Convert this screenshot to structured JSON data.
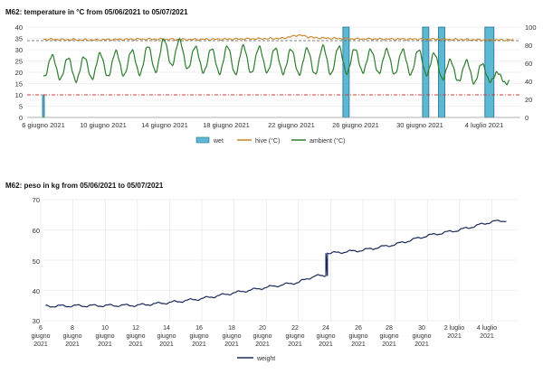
{
  "charts": [
    {
      "title": "M62: temperature in °C from 05/06/2021 to 05/07/2021",
      "y_ticks_left": [
        "0",
        "5",
        "10",
        "15",
        "20",
        "25",
        "30",
        "35",
        "40"
      ],
      "y_ticks_right": [
        "0",
        "20",
        "40",
        "60",
        "80",
        "100"
      ],
      "x_ticks": [
        "6 giugno 2021",
        "10 giugno 2021",
        "14 giugno 2021",
        "18 giugno 2021",
        "22 giugno 2021",
        "26 giugno 2021",
        "30 giugno 2021",
        "4 luglio 2021"
      ],
      "legend": [
        "wet",
        "hive (°C)",
        "ambient (°C)"
      ]
    },
    {
      "title": "M62: peso in kg from 05/06/2021 to 05/07/2021",
      "y_ticks": [
        "30",
        "40",
        "50",
        "60",
        "70"
      ],
      "x_ticks": [
        [
          "6",
          "giugno",
          "2021"
        ],
        [
          "8",
          "giugno",
          "2021"
        ],
        [
          "10",
          "giugno",
          "2021"
        ],
        [
          "12",
          "giugno",
          "2021"
        ],
        [
          "14",
          "giugno",
          "2021"
        ],
        [
          "16",
          "giugno",
          "2021"
        ],
        [
          "18",
          "giugno",
          "2021"
        ],
        [
          "20",
          "giugno",
          "2021"
        ],
        [
          "22",
          "giugno",
          "2021"
        ],
        [
          "24",
          "giugno",
          "2021"
        ],
        [
          "26",
          "giugno",
          "2021"
        ],
        [
          "28",
          "giugno",
          "2021"
        ],
        [
          "30",
          "giugno",
          "2021"
        ],
        [
          "2 luglio",
          "2021",
          ""
        ],
        [
          "4 luglio",
          "2021",
          ""
        ]
      ],
      "legend": [
        "weight"
      ]
    }
  ],
  "colors": {
    "wet": "#5db8d3",
    "hive": "#c8862a",
    "ambient": "#2f7d2f",
    "weight": "#1a2a5a",
    "threshold": "#d33b3b"
  },
  "chart_data": [
    {
      "type": "line",
      "title": "M62: temperature in °C from 05/06/2021 to 05/07/2021",
      "x_range": [
        "2021-06-05",
        "2021-07-05"
      ],
      "ylim": [
        0,
        40
      ],
      "ylim_right": [
        0,
        100
      ],
      "thresholds": {
        "upper": 34,
        "lower": 10
      },
      "grid": true,
      "legend_position": "bottom",
      "series": [
        {
          "name": "hive (°C)",
          "axis": "left",
          "color": "#c8862a",
          "x": [
            "2021-06-06",
            "2021-06-09",
            "2021-06-12",
            "2021-06-15",
            "2021-06-18",
            "2021-06-21",
            "2021-06-22",
            "2021-06-23",
            "2021-06-25",
            "2021-06-28",
            "2021-07-01",
            "2021-07-04"
          ],
          "y": [
            34.6,
            34.3,
            34.7,
            34.5,
            34.7,
            35.0,
            36.5,
            35.3,
            34.8,
            34.7,
            34.6,
            34.3
          ]
        },
        {
          "name": "ambient (°C)",
          "axis": "left",
          "color": "#2f7d2f",
          "x": [
            "2021-06-06",
            "2021-06-08",
            "2021-06-10",
            "2021-06-12",
            "2021-06-13",
            "2021-06-14",
            "2021-06-16",
            "2021-06-18",
            "2021-06-20",
            "2021-06-22",
            "2021-06-24",
            "2021-06-26",
            "2021-06-28",
            "2021-06-30",
            "2021-07-01",
            "2021-07-02",
            "2021-07-03",
            "2021-07-04",
            "2021-07-05"
          ],
          "y_max": [
            28,
            26,
            29,
            30,
            33,
            36,
            30,
            32,
            31,
            30,
            32,
            30,
            30,
            30,
            27,
            24,
            26,
            22,
            18
          ],
          "y_min": [
            18,
            16,
            18,
            19,
            20,
            23,
            20,
            19,
            20,
            19,
            19,
            20,
            19,
            19,
            17,
            16,
            15,
            16,
            15
          ]
        },
        {
          "name": "wet",
          "axis": "right",
          "type": "bar",
          "color": "#5db8d3",
          "x": [
            "2021-06-06",
            "2021-06-25",
            "2021-06-30",
            "2021-07-01",
            "2021-07-04"
          ],
          "values": [
            25,
            100,
            100,
            100,
            100
          ]
        }
      ]
    },
    {
      "type": "line",
      "title": "M62: peso in kg from 05/06/2021 to 05/07/2021",
      "xlabel": "",
      "ylabel": "",
      "ylim": [
        30,
        70
      ],
      "grid": true,
      "legend_position": "bottom",
      "series": [
        {
          "name": "weight",
          "color": "#1a2a5a",
          "x": [
            "2021-06-06",
            "2021-06-08",
            "2021-06-10",
            "2021-06-12",
            "2021-06-14",
            "2021-06-16",
            "2021-06-18",
            "2021-06-20",
            "2021-06-22",
            "2021-06-23",
            "2021-06-24",
            "2021-06-26",
            "2021-06-28",
            "2021-06-30",
            "2021-07-02",
            "2021-07-04",
            "2021-07-05"
          ],
          "y": [
            34.8,
            34.9,
            35.0,
            35.1,
            36.0,
            37.3,
            39.2,
            41.0,
            42.7,
            44.8,
            52.3,
            53.3,
            55.2,
            58.1,
            60.0,
            62.7,
            63.2
          ]
        }
      ]
    }
  ]
}
